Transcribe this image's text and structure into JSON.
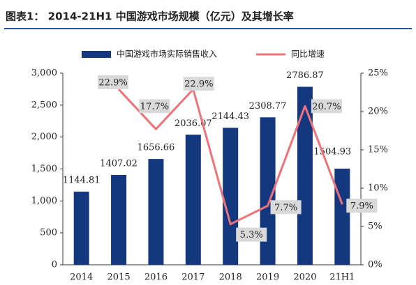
{
  "chart_data": {
    "type": "bar",
    "title": "图表1： 2014-21H1 中国游戏市场规模（亿元）及其增长率",
    "categories": [
      "2014",
      "2015",
      "2016",
      "2017",
      "2018",
      "2019",
      "2020",
      "21H1"
    ],
    "series": [
      {
        "name": "中国游戏市场实际销售收入",
        "color": "#14387f",
        "values": [
          1144.81,
          1407.02,
          1656.66,
          2036.07,
          2144.43,
          2308.77,
          2786.87,
          1504.93
        ]
      },
      {
        "name": "同比增速",
        "type": "line",
        "axis": "y2",
        "color": "#f07178",
        "values": [
          null,
          22.9,
          17.7,
          22.9,
          5.3,
          7.7,
          20.7,
          7.9
        ],
        "value_labels": [
          null,
          "22.9%",
          "17.7%",
          "22.9%",
          "5.3%",
          "7.7%",
          "20.7%",
          "7.9%"
        ]
      }
    ],
    "ylim": [
      0,
      3000
    ],
    "yticks": [
      0,
      500,
      {
        "value": 1000,
        "label": "1,000"
      },
      {
        "value": 1500,
        "label": "1,500"
      },
      {
        "value": 2000,
        "label": "2,000"
      },
      {
        "value": 2500,
        "label": "2,500"
      },
      {
        "value": 3000,
        "label": "3,000"
      }
    ],
    "y2lim": [
      0,
      25
    ],
    "y2ticks": [
      {
        "value": 0,
        "label": "0%"
      },
      {
        "value": 5,
        "label": "5%"
      },
      {
        "value": 10,
        "label": "10%"
      },
      {
        "value": 15,
        "label": "15%"
      },
      {
        "value": 20,
        "label": "20%"
      },
      {
        "value": 25,
        "label": "25%"
      }
    ],
    "legend": "top"
  }
}
